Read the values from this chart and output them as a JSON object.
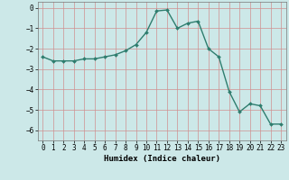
{
  "title": "",
  "xlabel": "Humidex (Indice chaleur)",
  "ylabel": "",
  "x": [
    0,
    1,
    2,
    3,
    4,
    5,
    6,
    7,
    8,
    9,
    10,
    11,
    12,
    13,
    14,
    15,
    16,
    17,
    18,
    19,
    20,
    21,
    22,
    23
  ],
  "y": [
    -2.4,
    -2.6,
    -2.6,
    -2.6,
    -2.5,
    -2.5,
    -2.4,
    -2.3,
    -2.1,
    -1.8,
    -1.2,
    -0.15,
    -0.1,
    -1.0,
    -0.75,
    -0.65,
    -2.0,
    -2.4,
    -4.1,
    -5.1,
    -4.7,
    -4.8,
    -5.7,
    -5.7
  ],
  "line_color": "#2e7d6e",
  "marker": "D",
  "marker_size": 2.0,
  "line_width": 1.0,
  "bg_color": "#cce8e8",
  "grid_color_v": "#d09090",
  "grid_color_h": "#d09090",
  "ylim": [
    -6.5,
    0.3
  ],
  "yticks": [
    0,
    -1,
    -2,
    -3,
    -4,
    -5,
    -6
  ],
  "xlim": [
    -0.5,
    23.5
  ],
  "axis_fontsize": 6.5,
  "tick_fontsize": 5.5
}
